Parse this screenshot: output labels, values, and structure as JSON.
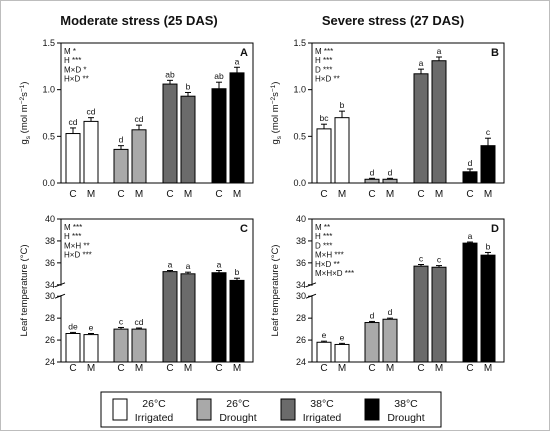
{
  "titles": {
    "moderate": "Moderate stress (25 DAS)",
    "severe": "Severe stress (27 DAS)"
  },
  "chart_data": [
    {
      "type": "bar",
      "panel": "A",
      "ylabel_main": "g",
      "ylabel_sub": "s",
      "ylabel_rest": " (mol m",
      "ylabel_exp1": "−2",
      "ylabel_mid": "s",
      "ylabel_exp2": "−1",
      "ylabel_end": ")",
      "ylim": [
        0,
        1.5
      ],
      "yticks": [
        "0.0",
        "0.5",
        "1.0",
        "1.5"
      ],
      "ytick_values": [
        0,
        0.5,
        1.0,
        1.5
      ],
      "categories": [
        "C",
        "M",
        "C",
        "M",
        "C",
        "M",
        "C",
        "M"
      ],
      "groups": [
        "26°C Irrigated",
        "26°C Drought",
        "38°C Irrigated",
        "38°C Drought"
      ],
      "values": [
        0.53,
        0.66,
        0.36,
        0.57,
        1.06,
        0.93,
        1.01,
        1.18
      ],
      "errors": [
        0.06,
        0.04,
        0.04,
        0.05,
        0.04,
        0.04,
        0.07,
        0.06
      ],
      "letters": [
        "cd",
        "cd",
        "d",
        "cd",
        "ab",
        "b",
        "ab",
        "a"
      ],
      "stats": [
        "M *",
        "H ***",
        "M×D *",
        "H×D **"
      ]
    },
    {
      "type": "bar",
      "panel": "B",
      "ylabel_main": "g",
      "ylabel_sub": "s",
      "ylabel_rest": " (mol m",
      "ylabel_exp1": "−2",
      "ylabel_mid": "s",
      "ylabel_exp2": "−1",
      "ylabel_end": ")",
      "ylim": [
        0,
        1.5
      ],
      "yticks": [
        "0.0",
        "0.5",
        "1.0",
        "1.5"
      ],
      "ytick_values": [
        0,
        0.5,
        1.0,
        1.5
      ],
      "categories": [
        "C",
        "M",
        "C",
        "M",
        "C",
        "M",
        "C",
        "M"
      ],
      "groups": [
        "26°C Irrigated",
        "26°C Drought",
        "38°C Irrigated",
        "38°C Drought"
      ],
      "values": [
        0.58,
        0.7,
        0.04,
        0.04,
        1.17,
        1.31,
        0.12,
        0.4
      ],
      "errors": [
        0.05,
        0.07,
        0.01,
        0.01,
        0.05,
        0.04,
        0.03,
        0.08
      ],
      "letters": [
        "bc",
        "b",
        "d",
        "d",
        "a",
        "a",
        "d",
        "c"
      ],
      "stats": [
        "M ***",
        "H ***",
        "D ***",
        "H×D **"
      ]
    },
    {
      "type": "bar",
      "panel": "C",
      "ylabel": "Leaf temperature (°C)",
      "ylim": [
        24,
        40
      ],
      "axis_break": [
        30,
        34
      ],
      "yticks": [
        "24",
        "26",
        "28",
        "30",
        "34",
        "36",
        "38",
        "40"
      ],
      "ytick_values": [
        24,
        26,
        28,
        30,
        34,
        36,
        38,
        40
      ],
      "categories": [
        "C",
        "M",
        "C",
        "M",
        "C",
        "M",
        "C",
        "M"
      ],
      "groups": [
        "26°C Irrigated",
        "26°C Drought",
        "38°C Irrigated",
        "38°C Drought"
      ],
      "values": [
        26.6,
        26.5,
        27.0,
        27.0,
        35.2,
        35.0,
        35.1,
        34.4
      ],
      "errors": [
        0.1,
        0.1,
        0.15,
        0.1,
        0.1,
        0.15,
        0.2,
        0.2
      ],
      "letters": [
        "de",
        "e",
        "c",
        "cd",
        "a",
        "a",
        "a",
        "b"
      ],
      "stats": [
        "M ***",
        "H ***",
        "M×H **",
        "H×D ***"
      ]
    },
    {
      "type": "bar",
      "panel": "D",
      "ylabel": "Leaf temperature (°C)",
      "ylim": [
        24,
        40
      ],
      "axis_break": [
        30,
        34
      ],
      "yticks": [
        "24",
        "26",
        "28",
        "30",
        "34",
        "36",
        "38",
        "40"
      ],
      "ytick_values": [
        24,
        26,
        28,
        30,
        34,
        36,
        38,
        40
      ],
      "categories": [
        "C",
        "M",
        "C",
        "M",
        "C",
        "M",
        "C",
        "M"
      ],
      "groups": [
        "26°C Irrigated",
        "26°C Drought",
        "38°C Irrigated",
        "38°C Drought"
      ],
      "values": [
        25.8,
        25.6,
        27.6,
        27.9,
        35.7,
        35.6,
        37.8,
        36.7
      ],
      "errors": [
        0.1,
        0.1,
        0.1,
        0.1,
        0.15,
        0.15,
        0.1,
        0.25
      ],
      "letters": [
        "e",
        "e",
        "d",
        "d",
        "c",
        "c",
        "a",
        "b"
      ],
      "stats": [
        "M **",
        "H ***",
        "D ***",
        "M×H ***",
        "H×D **",
        "M×H×D ***"
      ]
    }
  ],
  "legend": [
    {
      "line1": "26°C",
      "line2": "Irrigated",
      "color": "#ffffff"
    },
    {
      "line1": "26°C",
      "line2": "Drought",
      "color": "#a9a9a9"
    },
    {
      "line1": "38°C",
      "line2": "Irrigated",
      "color": "#6b6b6b"
    },
    {
      "line1": "38°C",
      "line2": "Drought",
      "color": "#000000"
    }
  ],
  "colors": {
    "group_fills": [
      "#ffffff",
      "#a9a9a9",
      "#6b6b6b",
      "#000000"
    ],
    "stroke": "#000000"
  }
}
